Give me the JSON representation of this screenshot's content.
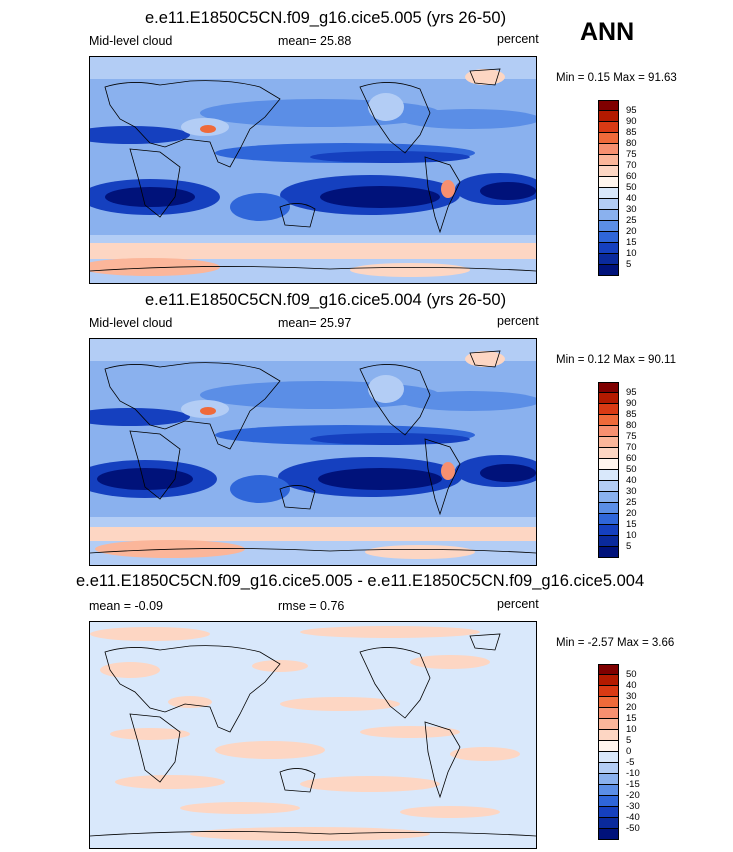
{
  "season": "ANN",
  "panels": [
    {
      "title": "e.e11.E1850C5CN.f09_g16.cice5.005 (yrs 26-50)",
      "left_label": "Mid-level cloud",
      "center_label": "mean=  25.88",
      "units": "percent",
      "minmax": "Min =   0.15 Max =  91.63",
      "colorbar": {
        "levels": [
          "95",
          "90",
          "85",
          "80",
          "75",
          "70",
          "60",
          "50",
          "40",
          "30",
          "25",
          "20",
          "15",
          "10",
          "5"
        ],
        "colors": [
          "#7f0000",
          "#b31a00",
          "#d93a14",
          "#ef6a3a",
          "#f79070",
          "#fbb69a",
          "#fdd6c3",
          "#fff5ee",
          "#d9e8fb",
          "#b3cdf5",
          "#8ab1ee",
          "#5b8ee6",
          "#2f66d9",
          "#1540bf",
          "#0a2a9c",
          "#00127a"
        ]
      }
    },
    {
      "title": "e.e11.E1850C5CN.f09_g16.cice5.004 (yrs 26-50)",
      "left_label": "Mid-level cloud",
      "center_label": "mean=  25.97",
      "units": "percent",
      "minmax": "Min =   0.12 Max =  90.11",
      "colorbar": {
        "levels": [
          "95",
          "90",
          "85",
          "80",
          "75",
          "70",
          "60",
          "50",
          "40",
          "30",
          "25",
          "20",
          "15",
          "10",
          "5"
        ],
        "colors": [
          "#7f0000",
          "#b31a00",
          "#d93a14",
          "#ef6a3a",
          "#f79070",
          "#fbb69a",
          "#fdd6c3",
          "#fff5ee",
          "#d9e8fb",
          "#b3cdf5",
          "#8ab1ee",
          "#5b8ee6",
          "#2f66d9",
          "#1540bf",
          "#0a2a9c",
          "#00127a"
        ]
      }
    },
    {
      "title": "e.e11.E1850C5CN.f09_g16.cice5.005 - e.e11.E1850C5CN.f09_g16.cice5.004",
      "left_label": "mean =  -0.09",
      "center_label": "rmse =   0.76",
      "units": "percent",
      "minmax": "Min =  -2.57 Max =   3.66",
      "colorbar": {
        "levels": [
          "50",
          "40",
          "30",
          "20",
          "15",
          "10",
          "5",
          "0",
          "-5",
          "-10",
          "-15",
          "-20",
          "-30",
          "-40",
          "-50"
        ],
        "colors": [
          "#7f0000",
          "#b31a00",
          "#d93a14",
          "#ef6a3a",
          "#f79070",
          "#fbb69a",
          "#fdd6c3",
          "#fff5ee",
          "#d9e8fb",
          "#b3cdf5",
          "#8ab1ee",
          "#5b8ee6",
          "#2f66d9",
          "#1540bf",
          "#0a2a9c",
          "#00127a"
        ]
      }
    }
  ]
}
